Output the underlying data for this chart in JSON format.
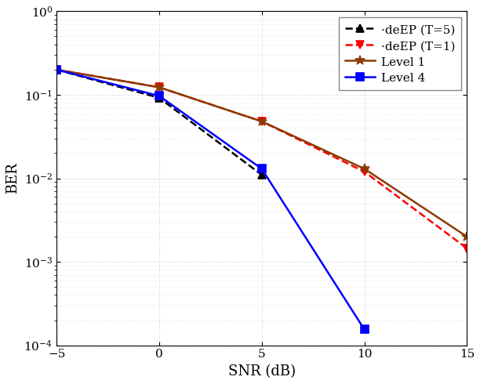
{
  "title": "",
  "xlabel": "SNR (dB)",
  "ylabel": "BER",
  "xlim": [
    -5,
    15
  ],
  "ylim_log": [
    0.0001,
    1.0
  ],
  "series": [
    {
      "legend_label": "·deEP (T=5)",
      "x": [
        -5,
        0,
        5
      ],
      "y": [
        0.2,
        0.092,
        0.011
      ],
      "color": "#000000",
      "linestyle": "--",
      "marker": "^",
      "marker_facecolor": "#000000",
      "marker_edgecolor": "#000000",
      "linewidth": 1.8,
      "markersize": 7
    },
    {
      "legend_label": "·deEP (T=1)",
      "x": [
        -5,
        0,
        5,
        10,
        15
      ],
      "y": [
        0.2,
        0.123,
        0.048,
        0.012,
        0.00145
      ],
      "color": "#FF0000",
      "linestyle": "--",
      "marker": "v",
      "marker_facecolor": "#FF0000",
      "marker_edgecolor": "#FF0000",
      "linewidth": 1.8,
      "markersize": 7
    },
    {
      "legend_label": "Level 1",
      "x": [
        -5,
        0,
        5,
        10,
        15
      ],
      "y": [
        0.2,
        0.123,
        0.048,
        0.013,
        0.002
      ],
      "color": "#8B3A00",
      "linestyle": "-",
      "marker": "*",
      "marker_facecolor": "#8B3A00",
      "marker_edgecolor": "#8B3A00",
      "linewidth": 1.8,
      "markersize": 9
    },
    {
      "legend_label": "Level 4",
      "x": [
        -5,
        0,
        5,
        10
      ],
      "y": [
        0.2,
        0.097,
        0.013,
        0.000155
      ],
      "color": "#0000FF",
      "linestyle": "-",
      "marker": "s",
      "marker_facecolor": "#0000FF",
      "marker_edgecolor": "#0000FF",
      "linewidth": 1.8,
      "markersize": 7
    }
  ],
  "legend_loc": "upper right",
  "xticks": [
    -5,
    0,
    5,
    10,
    15
  ],
  "background_color": "#ffffff",
  "grid_color": "#d0d0d0"
}
